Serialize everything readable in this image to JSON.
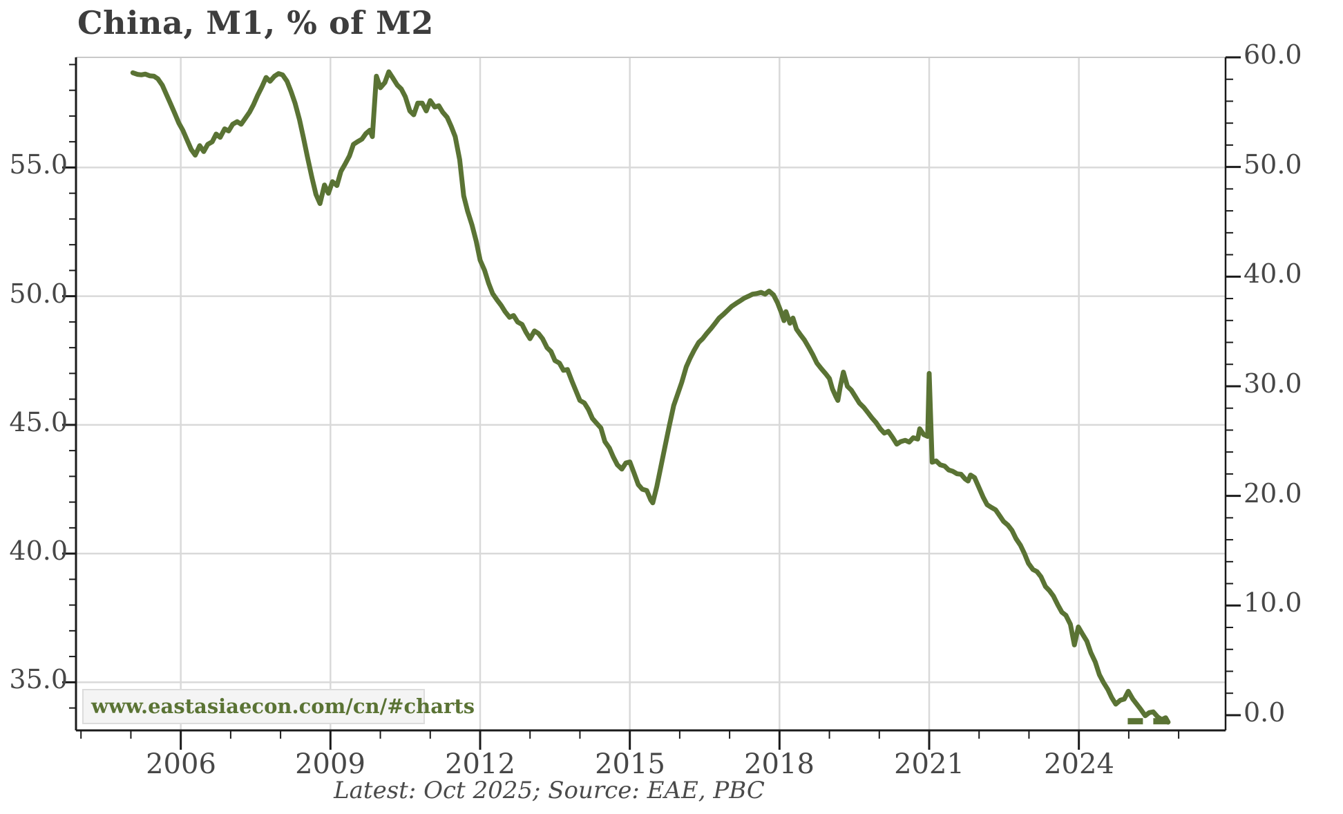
{
  "chart_data": {
    "type": "line",
    "title": "China, M1, % of M2",
    "watermark": "www.eastasiaecon.com/cn/#charts",
    "footer": "Latest: Oct 2025; Source: EAE, PBC",
    "grid": true,
    "legend": false,
    "x_axis": {
      "range": [
        2003.9,
        2026.94
      ],
      "major_ticks": [
        2006,
        2009,
        2012,
        2015,
        2018,
        2021,
        2024
      ],
      "minor_tick_step_years": 1
    },
    "left_axis": {
      "range": [
        33.13,
        59.28
      ],
      "major_ticks": [
        35.0,
        40.0,
        45.0,
        50.0,
        55.0
      ],
      "minor_tick_step": 1
    },
    "right_axis": {
      "range": [
        -1.39,
        60.0
      ],
      "major_ticks": [
        0.0,
        10.0,
        20.0,
        30.0,
        40.0,
        50.0,
        60.0
      ],
      "minor_tick_step": 2
    },
    "colors": {
      "line": "#5a7334",
      "grid": "#d9d9d9",
      "spine": "#1a1a1a",
      "top_spine": "#c9c9c9",
      "label": "#474747",
      "watermark_box_fill": "#f4f4f4",
      "watermark_box_border": "#dcdcdc"
    },
    "series": [
      {
        "name": "M1 % of M2",
        "axis": "left",
        "style": "solid",
        "color": "#5a7334",
        "points": [
          [
            2005.04,
            58.68
          ],
          [
            2005.13,
            58.62
          ],
          [
            2005.21,
            58.6
          ],
          [
            2005.29,
            58.63
          ],
          [
            2005.38,
            58.56
          ],
          [
            2005.46,
            58.55
          ],
          [
            2005.54,
            58.45
          ],
          [
            2005.63,
            58.2
          ],
          [
            2005.71,
            57.85
          ],
          [
            2005.79,
            57.5
          ],
          [
            2005.88,
            57.1
          ],
          [
            2005.96,
            56.73
          ],
          [
            2006.04,
            56.45
          ],
          [
            2006.13,
            56.05
          ],
          [
            2006.21,
            55.7
          ],
          [
            2006.29,
            55.48
          ],
          [
            2006.38,
            55.85
          ],
          [
            2006.46,
            55.62
          ],
          [
            2006.54,
            55.9
          ],
          [
            2006.63,
            56.0
          ],
          [
            2006.71,
            56.3
          ],
          [
            2006.79,
            56.17
          ],
          [
            2006.88,
            56.5
          ],
          [
            2006.96,
            56.42
          ],
          [
            2007.04,
            56.68
          ],
          [
            2007.13,
            56.78
          ],
          [
            2007.21,
            56.68
          ],
          [
            2007.29,
            56.9
          ],
          [
            2007.38,
            57.15
          ],
          [
            2007.46,
            57.45
          ],
          [
            2007.54,
            57.8
          ],
          [
            2007.63,
            58.15
          ],
          [
            2007.71,
            58.5
          ],
          [
            2007.79,
            58.35
          ],
          [
            2007.88,
            58.55
          ],
          [
            2007.96,
            58.65
          ],
          [
            2008.04,
            58.6
          ],
          [
            2008.13,
            58.35
          ],
          [
            2008.21,
            57.95
          ],
          [
            2008.29,
            57.5
          ],
          [
            2008.38,
            56.85
          ],
          [
            2008.46,
            56.15
          ],
          [
            2008.54,
            55.4
          ],
          [
            2008.63,
            54.6
          ],
          [
            2008.71,
            53.95
          ],
          [
            2008.79,
            53.6
          ],
          [
            2008.88,
            54.32
          ],
          [
            2008.96,
            54.0
          ],
          [
            2009.04,
            54.45
          ],
          [
            2009.13,
            54.3
          ],
          [
            2009.21,
            54.85
          ],
          [
            2009.29,
            55.12
          ],
          [
            2009.38,
            55.45
          ],
          [
            2009.46,
            55.9
          ],
          [
            2009.54,
            56.0
          ],
          [
            2009.63,
            56.1
          ],
          [
            2009.71,
            56.32
          ],
          [
            2009.79,
            56.45
          ],
          [
            2009.84,
            56.2
          ],
          [
            2009.92,
            58.55
          ],
          [
            2010.0,
            58.1
          ],
          [
            2010.09,
            58.3
          ],
          [
            2010.17,
            58.72
          ],
          [
            2010.25,
            58.48
          ],
          [
            2010.34,
            58.2
          ],
          [
            2010.42,
            58.05
          ],
          [
            2010.5,
            57.75
          ],
          [
            2010.59,
            57.2
          ],
          [
            2010.67,
            57.05
          ],
          [
            2010.75,
            57.5
          ],
          [
            2010.84,
            57.5
          ],
          [
            2010.92,
            57.2
          ],
          [
            2011.0,
            57.6
          ],
          [
            2011.09,
            57.35
          ],
          [
            2011.17,
            57.4
          ],
          [
            2011.25,
            57.15
          ],
          [
            2011.34,
            56.95
          ],
          [
            2011.42,
            56.6
          ],
          [
            2011.5,
            56.2
          ],
          [
            2011.59,
            55.3
          ],
          [
            2011.67,
            53.9
          ],
          [
            2011.75,
            53.3
          ],
          [
            2011.84,
            52.75
          ],
          [
            2011.92,
            52.15
          ],
          [
            2012.0,
            51.4
          ],
          [
            2012.09,
            51.0
          ],
          [
            2012.17,
            50.5
          ],
          [
            2012.25,
            50.1
          ],
          [
            2012.34,
            49.85
          ],
          [
            2012.42,
            49.65
          ],
          [
            2012.5,
            49.4
          ],
          [
            2012.59,
            49.18
          ],
          [
            2012.67,
            49.25
          ],
          [
            2012.75,
            49.0
          ],
          [
            2012.84,
            48.9
          ],
          [
            2012.92,
            48.6
          ],
          [
            2013.0,
            48.35
          ],
          [
            2013.09,
            48.65
          ],
          [
            2013.17,
            48.55
          ],
          [
            2013.25,
            48.35
          ],
          [
            2013.34,
            48.0
          ],
          [
            2013.42,
            47.85
          ],
          [
            2013.5,
            47.5
          ],
          [
            2013.59,
            47.4
          ],
          [
            2013.67,
            47.12
          ],
          [
            2013.75,
            47.15
          ],
          [
            2013.84,
            46.7
          ],
          [
            2013.92,
            46.32
          ],
          [
            2014.0,
            45.95
          ],
          [
            2014.09,
            45.85
          ],
          [
            2014.17,
            45.6
          ],
          [
            2014.25,
            45.25
          ],
          [
            2014.34,
            45.05
          ],
          [
            2014.42,
            44.88
          ],
          [
            2014.5,
            44.35
          ],
          [
            2014.59,
            44.1
          ],
          [
            2014.67,
            43.75
          ],
          [
            2014.75,
            43.45
          ],
          [
            2014.84,
            43.28
          ],
          [
            2014.92,
            43.52
          ],
          [
            2015.0,
            43.56
          ],
          [
            2015.09,
            43.1
          ],
          [
            2015.17,
            42.68
          ],
          [
            2015.25,
            42.5
          ],
          [
            2015.34,
            42.45
          ],
          [
            2015.42,
            42.08
          ],
          [
            2015.46,
            41.97
          ],
          [
            2015.54,
            42.6
          ],
          [
            2015.63,
            43.45
          ],
          [
            2015.71,
            44.2
          ],
          [
            2015.79,
            44.95
          ],
          [
            2015.88,
            45.75
          ],
          [
            2015.96,
            46.2
          ],
          [
            2016.04,
            46.65
          ],
          [
            2016.13,
            47.25
          ],
          [
            2016.21,
            47.6
          ],
          [
            2016.29,
            47.9
          ],
          [
            2016.38,
            48.2
          ],
          [
            2016.46,
            48.35
          ],
          [
            2016.54,
            48.55
          ],
          [
            2016.63,
            48.75
          ],
          [
            2016.71,
            48.95
          ],
          [
            2016.79,
            49.15
          ],
          [
            2016.88,
            49.3
          ],
          [
            2016.96,
            49.45
          ],
          [
            2017.04,
            49.6
          ],
          [
            2017.13,
            49.72
          ],
          [
            2017.21,
            49.82
          ],
          [
            2017.29,
            49.92
          ],
          [
            2017.38,
            50.0
          ],
          [
            2017.46,
            50.08
          ],
          [
            2017.54,
            50.1
          ],
          [
            2017.63,
            50.15
          ],
          [
            2017.71,
            50.08
          ],
          [
            2017.79,
            50.2
          ],
          [
            2017.88,
            50.05
          ],
          [
            2017.96,
            49.75
          ],
          [
            2018.04,
            49.35
          ],
          [
            2018.09,
            49.05
          ],
          [
            2018.13,
            49.4
          ],
          [
            2018.21,
            48.95
          ],
          [
            2018.27,
            49.15
          ],
          [
            2018.34,
            48.72
          ],
          [
            2018.42,
            48.5
          ],
          [
            2018.5,
            48.3
          ],
          [
            2018.59,
            48.0
          ],
          [
            2018.67,
            47.72
          ],
          [
            2018.75,
            47.4
          ],
          [
            2018.84,
            47.18
          ],
          [
            2018.92,
            47.0
          ],
          [
            2019.0,
            46.8
          ],
          [
            2019.06,
            46.4
          ],
          [
            2019.13,
            46.1
          ],
          [
            2019.17,
            45.95
          ],
          [
            2019.22,
            46.5
          ],
          [
            2019.28,
            47.05
          ],
          [
            2019.36,
            46.5
          ],
          [
            2019.44,
            46.35
          ],
          [
            2019.52,
            46.1
          ],
          [
            2019.6,
            45.85
          ],
          [
            2019.69,
            45.68
          ],
          [
            2019.77,
            45.48
          ],
          [
            2019.85,
            45.28
          ],
          [
            2019.94,
            45.08
          ],
          [
            2020.02,
            44.85
          ],
          [
            2020.1,
            44.68
          ],
          [
            2020.18,
            44.75
          ],
          [
            2020.27,
            44.5
          ],
          [
            2020.35,
            44.25
          ],
          [
            2020.43,
            44.35
          ],
          [
            2020.52,
            44.4
          ],
          [
            2020.6,
            44.33
          ],
          [
            2020.68,
            44.5
          ],
          [
            2020.77,
            44.45
          ],
          [
            2020.81,
            44.85
          ],
          [
            2020.89,
            44.62
          ],
          [
            2020.97,
            44.55
          ],
          [
            2021.0,
            47.0
          ],
          [
            2021.06,
            43.55
          ],
          [
            2021.14,
            43.6
          ],
          [
            2021.22,
            43.45
          ],
          [
            2021.31,
            43.4
          ],
          [
            2021.39,
            43.25
          ],
          [
            2021.47,
            43.2
          ],
          [
            2021.56,
            43.1
          ],
          [
            2021.64,
            43.08
          ],
          [
            2021.72,
            42.9
          ],
          [
            2021.78,
            42.82
          ],
          [
            2021.83,
            43.05
          ],
          [
            2021.91,
            42.95
          ],
          [
            2021.99,
            42.6
          ],
          [
            2022.08,
            42.2
          ],
          [
            2022.16,
            41.9
          ],
          [
            2022.24,
            41.8
          ],
          [
            2022.33,
            41.7
          ],
          [
            2022.41,
            41.48
          ],
          [
            2022.49,
            41.25
          ],
          [
            2022.58,
            41.1
          ],
          [
            2022.66,
            40.9
          ],
          [
            2022.74,
            40.58
          ],
          [
            2022.83,
            40.32
          ],
          [
            2022.91,
            40.0
          ],
          [
            2022.99,
            39.62
          ],
          [
            2023.08,
            39.38
          ],
          [
            2023.16,
            39.3
          ],
          [
            2023.24,
            39.1
          ],
          [
            2023.33,
            38.72
          ],
          [
            2023.41,
            38.56
          ],
          [
            2023.49,
            38.35
          ],
          [
            2023.58,
            38.0
          ],
          [
            2023.66,
            37.72
          ],
          [
            2023.74,
            37.6
          ],
          [
            2023.83,
            37.25
          ],
          [
            2023.91,
            36.45
          ],
          [
            2023.99,
            37.15
          ],
          [
            2024.08,
            36.85
          ],
          [
            2024.16,
            36.6
          ],
          [
            2024.24,
            36.15
          ],
          [
            2024.33,
            35.78
          ],
          [
            2024.41,
            35.3
          ],
          [
            2024.49,
            35.0
          ],
          [
            2024.58,
            34.72
          ],
          [
            2024.66,
            34.4
          ],
          [
            2024.74,
            34.15
          ],
          [
            2024.83,
            34.3
          ],
          [
            2024.91,
            34.35
          ],
          [
            2024.99,
            34.65
          ],
          [
            2025.08,
            34.35
          ],
          [
            2025.16,
            34.15
          ],
          [
            2025.24,
            33.95
          ],
          [
            2025.33,
            33.7
          ],
          [
            2025.41,
            33.82
          ],
          [
            2025.49,
            33.85
          ],
          [
            2025.58,
            33.65
          ],
          [
            2025.66,
            33.55
          ],
          [
            2025.74,
            33.62
          ],
          [
            2025.79,
            33.45
          ]
        ]
      },
      {
        "name": "latest-period-dashed-marker",
        "axis": "right",
        "style": "dashed",
        "color": "#5a7334",
        "points": [
          [
            2024.98,
            -0.55
          ],
          [
            2025.83,
            -0.55
          ]
        ]
      }
    ]
  }
}
